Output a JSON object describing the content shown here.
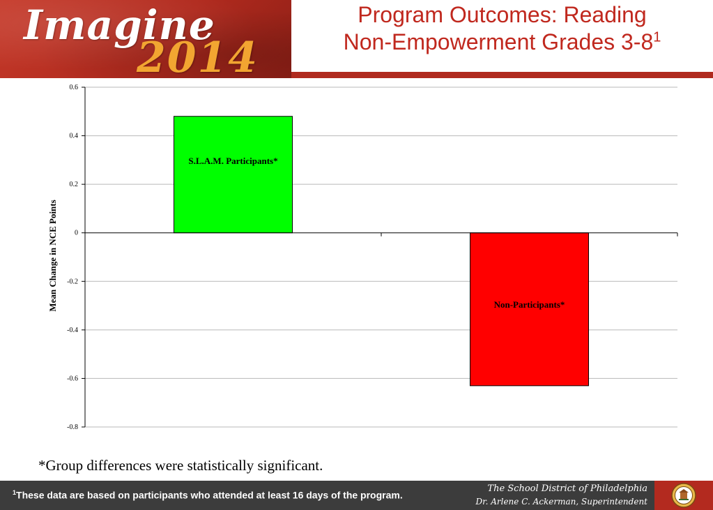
{
  "header": {
    "logo_word": "Imagine",
    "logo_year": "2014",
    "title_line1": "Program Outcomes: Reading",
    "title_line2": "Non-Empowerment Grades 3-8",
    "title_superscript": "1"
  },
  "chart_data": {
    "type": "bar",
    "categories": [
      "S.L.A.M. Participants*",
      "Non-Participants*"
    ],
    "values": [
      0.48,
      -0.63
    ],
    "colors": [
      "#00ff00",
      "#ff0000"
    ],
    "ylabel": "Mean Change in NCE Points",
    "ylim": [
      -0.8,
      0.6
    ],
    "yticks": [
      0.6,
      0.4,
      0.2,
      0,
      -0.2,
      -0.4,
      -0.6,
      -0.8
    ],
    "ytick_labels": [
      "0.6",
      "0.4",
      "0.2",
      "0",
      "-0.2",
      "-0.4",
      "-0.6",
      "-0.8"
    ],
    "grid": true,
    "legend": "none"
  },
  "footnote": "*Group differences were statistically significant.",
  "footer": {
    "note_superscript": "1",
    "note": "These data are based on participants who attended at least 16 days of the program.",
    "district": "The School District of Philadelphia",
    "superintendent": "Dr. Arlene C. Ackerman, Superintendent"
  },
  "icons": {
    "seal": "district-seal-icon"
  }
}
